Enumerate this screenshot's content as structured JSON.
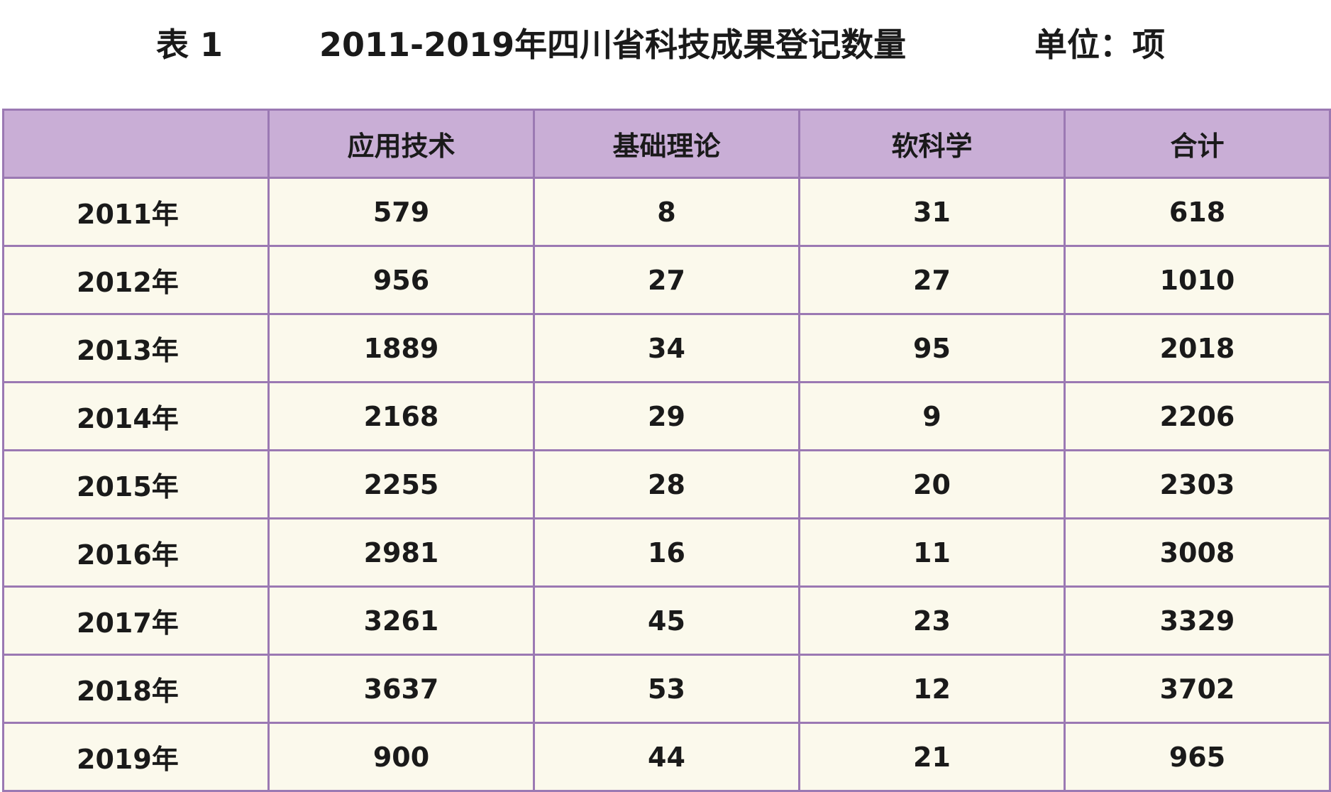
{
  "title": {
    "label": "表 1",
    "text": "2011-2019年四川省科技成果登记数量",
    "unit": "单位：项"
  },
  "table": {
    "headers": [
      "",
      "应用技术",
      "基础理论",
      "软科学",
      "合计"
    ],
    "rows": [
      [
        "2011年",
        "579",
        "8",
        "31",
        "618"
      ],
      [
        "2012年",
        "956",
        "27",
        "27",
        "1010"
      ],
      [
        "2013年",
        "1889",
        "34",
        "95",
        "2018"
      ],
      [
        "2014年",
        "2168",
        "29",
        "9",
        "2206"
      ],
      [
        "2015年",
        "2255",
        "28",
        "20",
        "2303"
      ],
      [
        "2016年",
        "2981",
        "16",
        "11",
        "3008"
      ],
      [
        "2017年",
        "3261",
        "45",
        "23",
        "3329"
      ],
      [
        "2018年",
        "3637",
        "53",
        "12",
        "3702"
      ],
      [
        "2019年",
        "900",
        "44",
        "21",
        "965"
      ]
    ]
  },
  "colors": {
    "header_bg": "#c9aed6",
    "body_bg": "#fbf9ec",
    "border": "#9b79b3"
  }
}
